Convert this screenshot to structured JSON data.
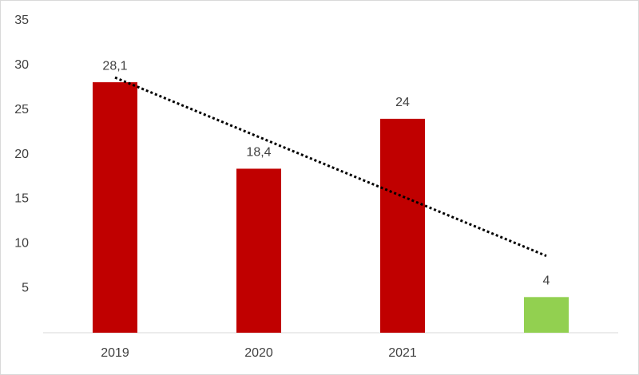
{
  "chart_data": {
    "type": "bar",
    "categories": [
      "2019",
      "2020",
      "2021",
      null
    ],
    "values": [
      28.1,
      18.4,
      24,
      4
    ],
    "value_labels": [
      "28,1",
      "18,4",
      "24",
      "4"
    ],
    "colors": [
      "#c00000",
      "#c00000",
      "#c00000",
      "#92d050"
    ],
    "ylim": [
      0,
      35
    ],
    "yticks": [
      5,
      10,
      15,
      20,
      25,
      30,
      35
    ],
    "grid": false,
    "trendline": "linear"
  }
}
